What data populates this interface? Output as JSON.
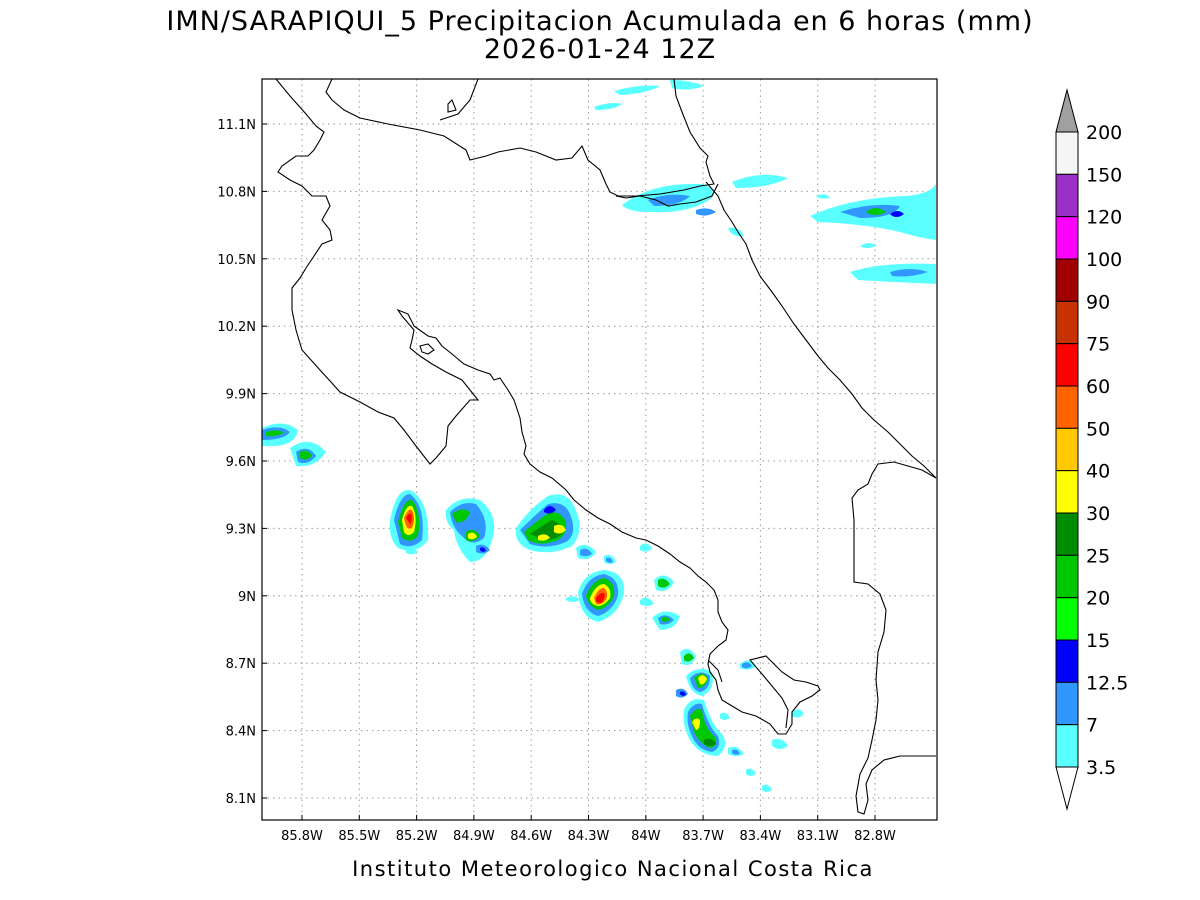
{
  "title": {
    "line1": "IMN/SARAPIQUI_5 Precipitacion Acumulada en 6 horas (mm)",
    "line2": "2026-01-24 12Z"
  },
  "footer": "Instituto Meteorologico Nacional Costa Rica",
  "map": {
    "lon_labels": [
      "85.8W",
      "85.5W",
      "85.2W",
      "84.9W",
      "84.6W",
      "84.3W",
      "84W",
      "83.7W",
      "83.4W",
      "83.1W",
      "82.8W"
    ],
    "lat_labels": [
      "11.1N",
      "10.8N",
      "10.5N",
      "10.2N",
      "9.9N",
      "9.6N",
      "9.3N",
      "9N",
      "8.7N",
      "8.4N",
      "8.1N"
    ]
  },
  "colorbar": {
    "levels": [
      "200",
      "150",
      "120",
      "100",
      "90",
      "75",
      "60",
      "50",
      "40",
      "30",
      "25",
      "20",
      "15",
      "12.5",
      "7",
      "3.5"
    ],
    "colors": [
      "#a0a0a0",
      "#f5f5f5",
      "#9b30c8",
      "#ff00ff",
      "#a00000",
      "#c83200",
      "#ff0000",
      "#ff6400",
      "#ffc800",
      "#ffff00",
      "#008c00",
      "#00c800",
      "#00ff00",
      "#0000ff",
      "#3296ff",
      "#5affff",
      "#ffffff"
    ]
  }
}
